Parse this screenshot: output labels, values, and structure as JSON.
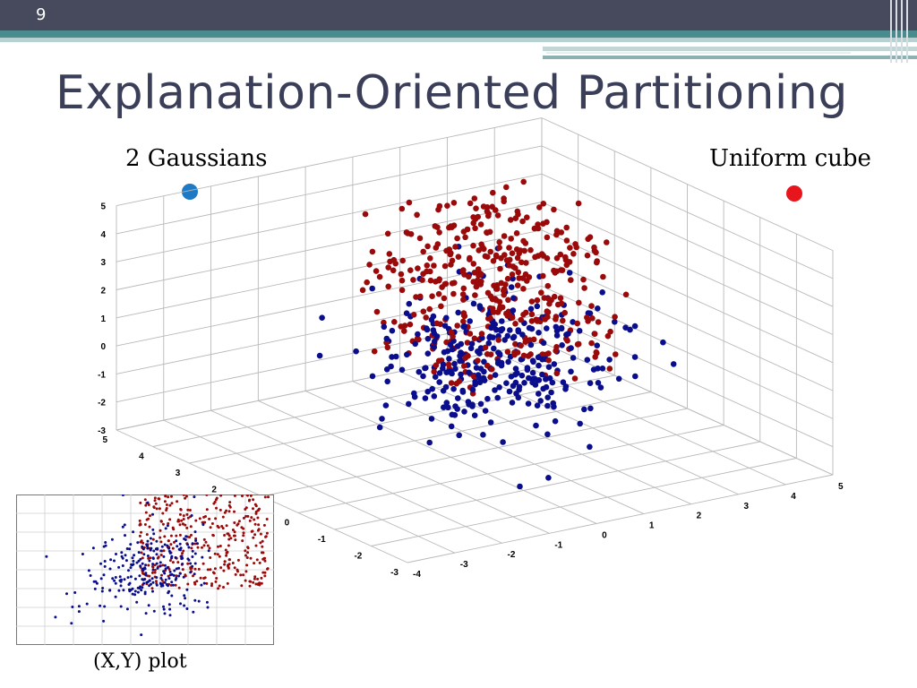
{
  "slide": {
    "number": "9",
    "title": "Explanation-Oriented Partitioning"
  },
  "labels": {
    "gaussians": "2 Gaussians",
    "uniform": "Uniform cube",
    "xy_plot": "(X,Y) plot"
  },
  "colors": {
    "gaussian": "#0a0e8c",
    "uniform": "#9b0a0a",
    "gaussian_legend": "#1f7ac6",
    "uniform_legend": "#e8161c"
  },
  "chart_data": [
    {
      "type": "scatter",
      "dimensions": 3,
      "axes": {
        "x": {
          "range": [
            -3,
            5
          ],
          "ticks": [
            "-3",
            "-2",
            "-1",
            "0",
            "1",
            "2",
            "3",
            "4",
            "5"
          ]
        },
        "y": {
          "range": [
            -4,
            5
          ],
          "ticks": [
            "-4",
            "-3",
            "-2",
            "-1",
            "0",
            "1",
            "2",
            "3",
            "4",
            "5"
          ]
        },
        "z": {
          "range": [
            -3,
            5
          ],
          "ticks": [
            "-3",
            "-2",
            "-1",
            "0",
            "1",
            "2",
            "3",
            "4",
            "5"
          ]
        }
      },
      "grid": true,
      "series": [
        {
          "name": "2 Gaussians",
          "color": "#0a0e8c",
          "distribution": "two gaussian clusters centred near (0,0,0) and (1,1,1)",
          "count": 320
        },
        {
          "name": "Uniform cube",
          "color": "#9b0a0a",
          "distribution": "uniform in cube [0,3]x[0,3]x[0,5] region",
          "count": 420
        }
      ]
    },
    {
      "type": "scatter",
      "dimensions": 2,
      "title": "(X,Y) plot",
      "grid": true,
      "series": [
        {
          "name": "2 Gaussians",
          "color": "#0a0e8c",
          "count": 260
        },
        {
          "name": "Uniform cube",
          "color": "#9b0a0a",
          "count": 380
        }
      ]
    }
  ]
}
